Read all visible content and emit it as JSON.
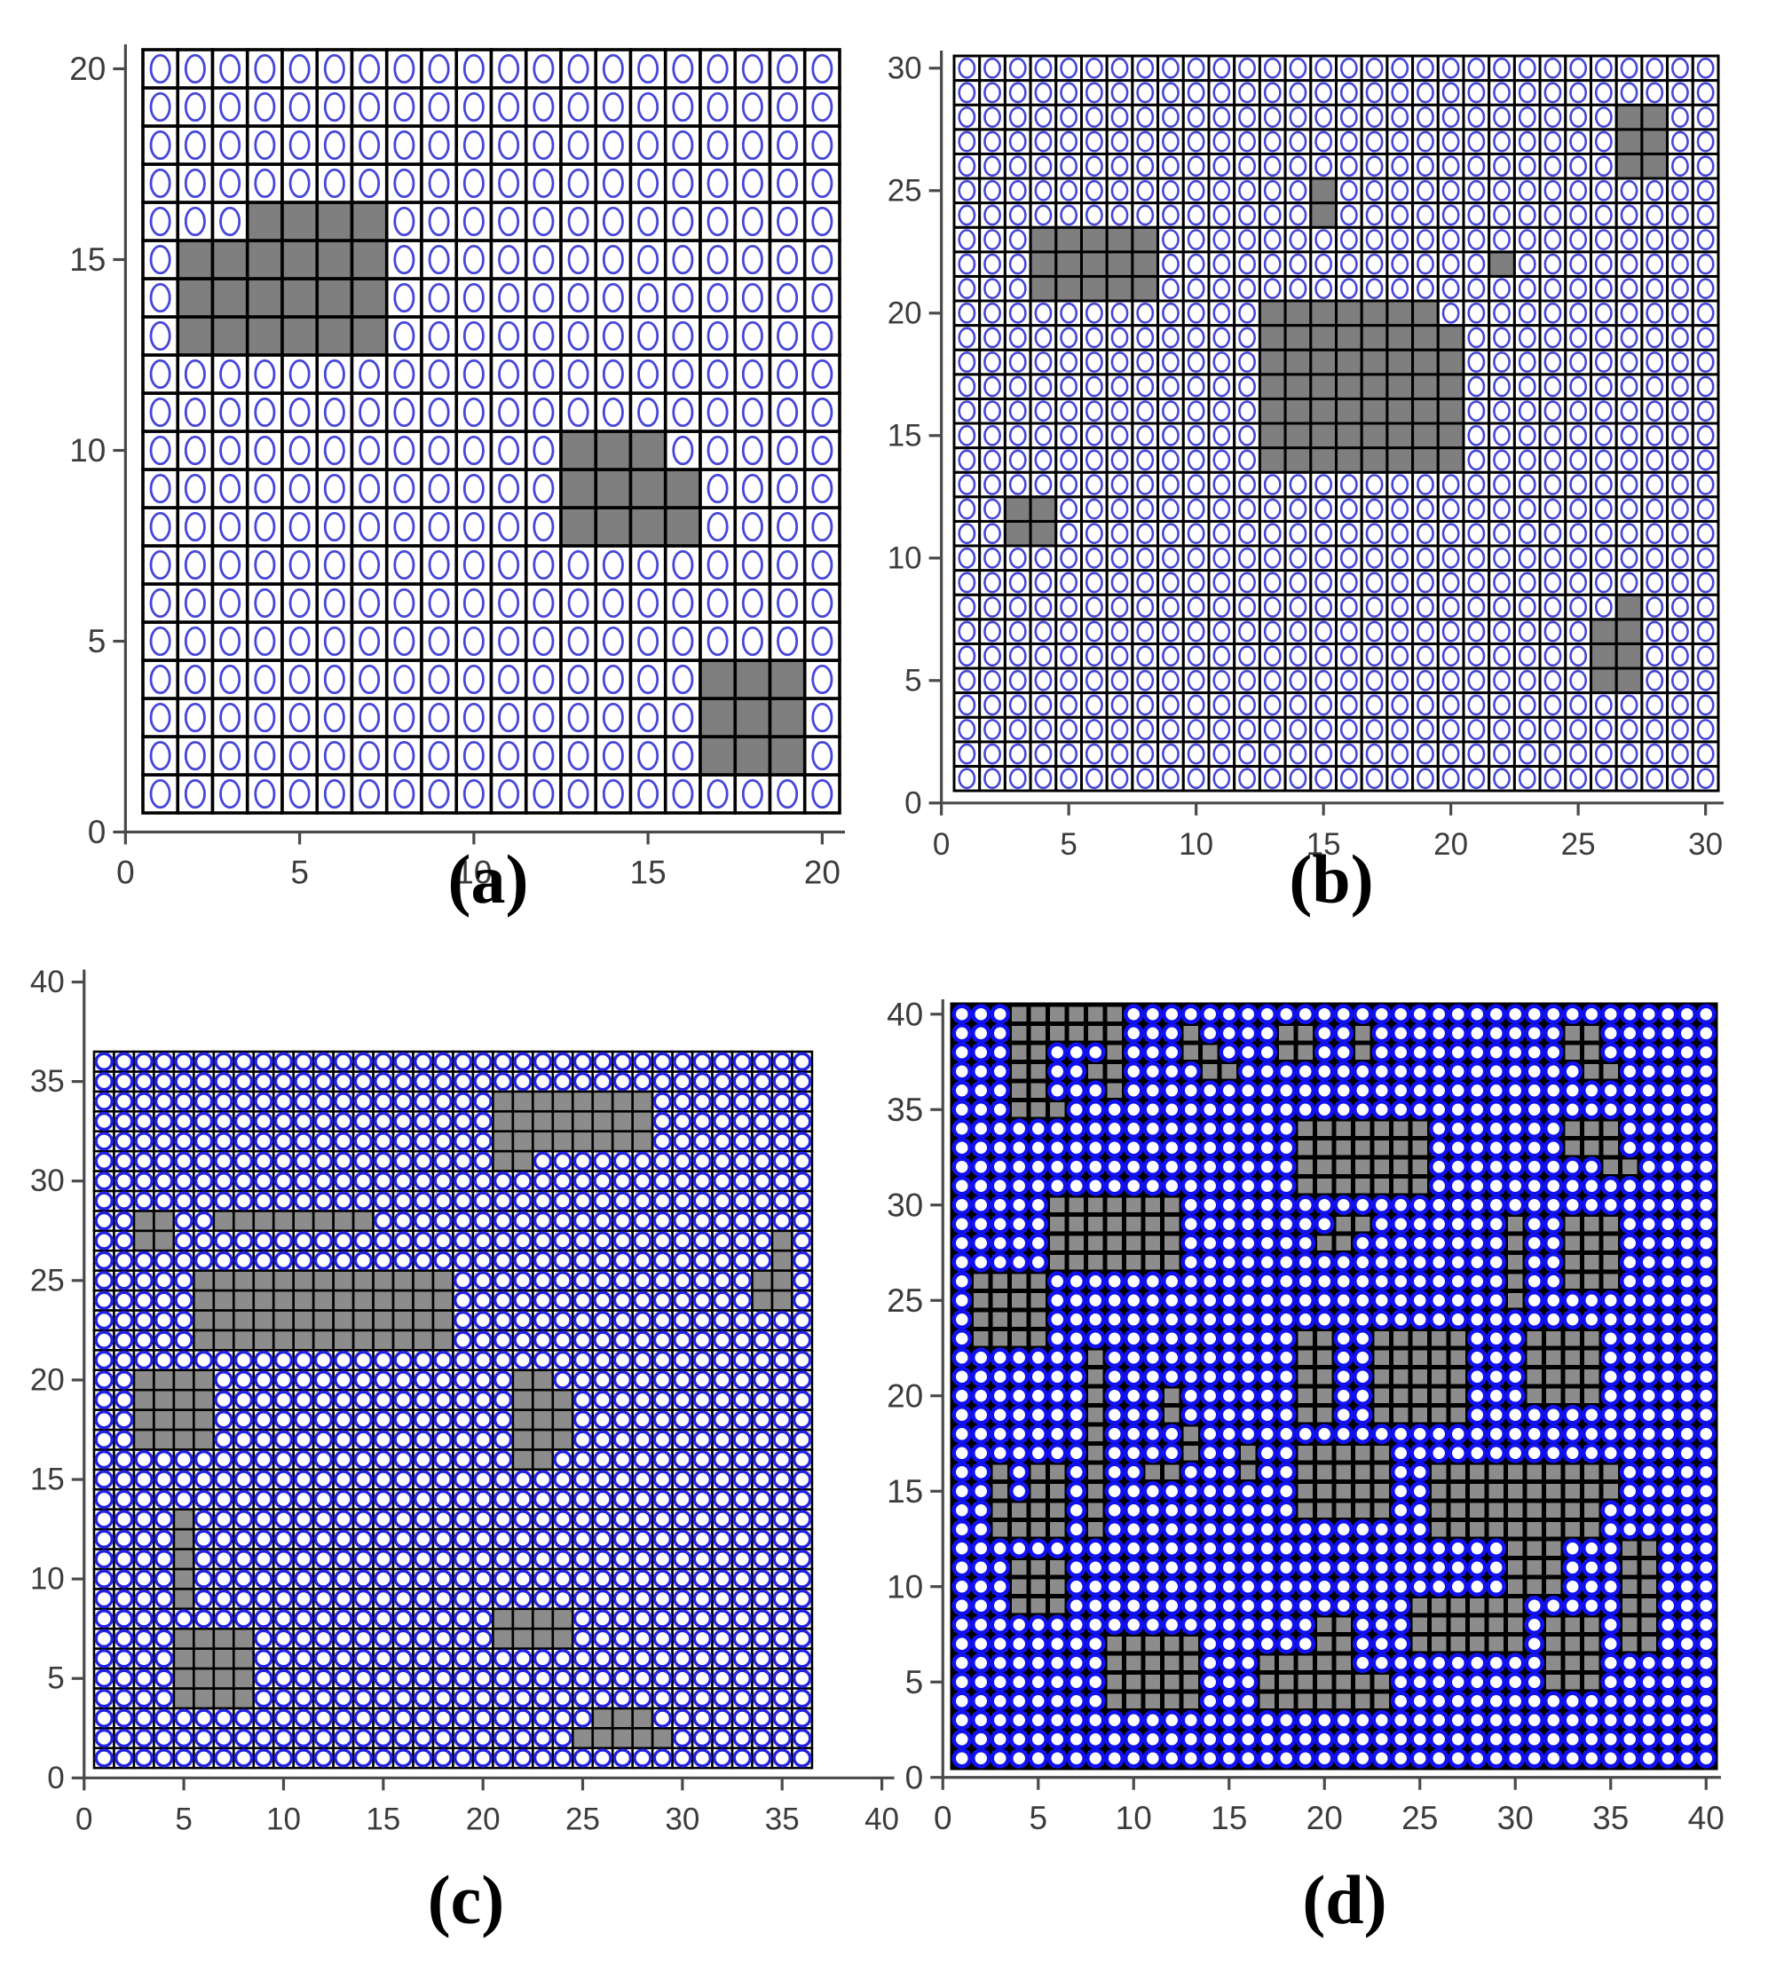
{
  "figure": {
    "description": "Four occupancy grid maps with free cells marked by blue circles and obstacle cells filled gray",
    "background": "#ffffff"
  },
  "colors": {
    "grid_line": "#000000",
    "cell_free_fill": "#ffffff",
    "axis_line": "#4a4a4a",
    "tick_label": "#3c3c3c",
    "caption_text": "#000000",
    "obstacle_fill_ab": "#7f7f7f",
    "obstacle_fill_cd": "#8c8c8c",
    "circle_blue_ab": "#4646d8",
    "circle_blue_c": "#2222e0",
    "circle_blue_d": "#1111ee"
  },
  "captions": {
    "a": "(a)",
    "b": "(b)",
    "c": "(c)",
    "d": "(d)"
  },
  "chart_data": {
    "type": "heatmap",
    "subtype": "occupancy-grid-maps",
    "free_cell_marker": "blue-circle",
    "obstacle_cell_marker": "gray-filled-square",
    "panels": [
      {
        "id": "a",
        "caption": "(a)",
        "grid_cols": 20,
        "grid_rows": 20,
        "x_ticks": [
          0,
          5,
          10,
          15,
          20
        ],
        "y_ticks": [
          0,
          5,
          10,
          15,
          20
        ],
        "x_range": [
          0,
          20
        ],
        "y_range": [
          0,
          20
        ],
        "obstacle_color": "#7f7f7f",
        "circle_color": "#4646d8",
        "obstacle_rects": [
          {
            "x1": 4,
            "y1": 16,
            "x2": 7,
            "y2": 16
          },
          {
            "x1": 2,
            "y1": 13,
            "x2": 7,
            "y2": 15
          },
          {
            "x1": 13,
            "y1": 10,
            "x2": 15,
            "y2": 10
          },
          {
            "x1": 13,
            "y1": 8,
            "x2": 16,
            "y2": 9
          },
          {
            "x1": 17,
            "y1": 2,
            "x2": 19,
            "y2": 4
          }
        ]
      },
      {
        "id": "b",
        "caption": "(b)",
        "grid_cols": 30,
        "grid_rows": 30,
        "x_ticks": [
          0,
          5,
          10,
          15,
          20,
          25,
          30
        ],
        "y_ticks": [
          0,
          5,
          10,
          15,
          20,
          25,
          30
        ],
        "x_range": [
          0,
          30
        ],
        "y_range": [
          0,
          30
        ],
        "obstacle_color": "#7f7f7f",
        "circle_color": "#4646d8",
        "obstacle_rects": [
          {
            "x1": 27,
            "y1": 26,
            "x2": 28,
            "y2": 28
          },
          {
            "x1": 4,
            "y1": 21,
            "x2": 8,
            "y2": 23
          },
          {
            "x1": 15,
            "y1": 24,
            "x2": 15,
            "y2": 25
          },
          {
            "x1": 22,
            "y1": 22,
            "x2": 22,
            "y2": 22
          },
          {
            "x1": 13,
            "y1": 20,
            "x2": 19,
            "y2": 20
          },
          {
            "x1": 13,
            "y1": 14,
            "x2": 20,
            "y2": 19
          },
          {
            "x1": 3,
            "y1": 11,
            "x2": 4,
            "y2": 12
          },
          {
            "x1": 27,
            "y1": 8,
            "x2": 27,
            "y2": 8
          },
          {
            "x1": 26,
            "y1": 5,
            "x2": 27,
            "y2": 7
          }
        ]
      },
      {
        "id": "c",
        "caption": "(c)",
        "grid_cols": 36,
        "grid_rows": 36,
        "x_ticks": [
          0,
          5,
          10,
          15,
          20,
          25,
          30,
          35,
          40
        ],
        "y_ticks": [
          0,
          5,
          10,
          15,
          20,
          25,
          30,
          35,
          40
        ],
        "x_range": [
          0,
          40
        ],
        "y_range": [
          0,
          40
        ],
        "obstacle_color": "#8c8c8c",
        "circle_color": "#2222e0",
        "obstacle_rects": [
          {
            "x1": 3,
            "y1": 27,
            "x2": 4,
            "y2": 28
          },
          {
            "x1": 7,
            "y1": 28,
            "x2": 14,
            "y2": 28
          },
          {
            "x1": 21,
            "y1": 32,
            "x2": 28,
            "y2": 34
          },
          {
            "x1": 21,
            "y1": 31,
            "x2": 22,
            "y2": 31
          },
          {
            "x1": 6,
            "y1": 22,
            "x2": 18,
            "y2": 25
          },
          {
            "x1": 35,
            "y1": 26,
            "x2": 35,
            "y2": 27
          },
          {
            "x1": 34,
            "y1": 24,
            "x2": 35,
            "y2": 25
          },
          {
            "x1": 3,
            "y1": 17,
            "x2": 6,
            "y2": 20
          },
          {
            "x1": 22,
            "y1": 16,
            "x2": 23,
            "y2": 20
          },
          {
            "x1": 24,
            "y1": 17,
            "x2": 24,
            "y2": 19
          },
          {
            "x1": 5,
            "y1": 9,
            "x2": 5,
            "y2": 13
          },
          {
            "x1": 21,
            "y1": 7,
            "x2": 24,
            "y2": 8
          },
          {
            "x1": 5,
            "y1": 4,
            "x2": 8,
            "y2": 7
          },
          {
            "x1": 26,
            "y1": 3,
            "x2": 28,
            "y2": 3
          },
          {
            "x1": 25,
            "y1": 2,
            "x2": 29,
            "y2": 2
          }
        ]
      },
      {
        "id": "d",
        "caption": "(d)",
        "grid_cols": 40,
        "grid_rows": 40,
        "x_ticks": [
          0,
          5,
          10,
          15,
          20,
          25,
          30,
          35,
          40
        ],
        "y_ticks": [
          0,
          5,
          10,
          15,
          20,
          25,
          30,
          35,
          40
        ],
        "x_range": [
          0,
          40
        ],
        "y_range": [
          0,
          40
        ],
        "obstacle_color": "#8c8c8c",
        "circle_color": "#1111ee",
        "obstacle_rects": [
          {
            "x1": 4,
            "y1": 39,
            "x2": 9,
            "y2": 40
          },
          {
            "x1": 4,
            "y1": 35,
            "x2": 5,
            "y2": 38
          },
          {
            "x1": 6,
            "y1": 35,
            "x2": 6,
            "y2": 35
          },
          {
            "x1": 9,
            "y1": 36,
            "x2": 9,
            "y2": 38
          },
          {
            "x1": 8,
            "y1": 37,
            "x2": 8,
            "y2": 37
          },
          {
            "x1": 13,
            "y1": 38,
            "x2": 13,
            "y2": 39
          },
          {
            "x1": 14,
            "y1": 37,
            "x2": 14,
            "y2": 38
          },
          {
            "x1": 15,
            "y1": 37,
            "x2": 15,
            "y2": 37
          },
          {
            "x1": 18,
            "y1": 38,
            "x2": 19,
            "y2": 39
          },
          {
            "x1": 22,
            "y1": 38,
            "x2": 22,
            "y2": 39
          },
          {
            "x1": 33,
            "y1": 38,
            "x2": 34,
            "y2": 39
          },
          {
            "x1": 34,
            "y1": 37,
            "x2": 35,
            "y2": 37
          },
          {
            "x1": 19,
            "y1": 31,
            "x2": 25,
            "y2": 34
          },
          {
            "x1": 33,
            "y1": 33,
            "x2": 35,
            "y2": 34
          },
          {
            "x1": 35,
            "y1": 32,
            "x2": 36,
            "y2": 32
          },
          {
            "x1": 6,
            "y1": 27,
            "x2": 12,
            "y2": 30
          },
          {
            "x1": 21,
            "y1": 29,
            "x2": 22,
            "y2": 29
          },
          {
            "x1": 20,
            "y1": 28,
            "x2": 21,
            "y2": 28
          },
          {
            "x1": 30,
            "y1": 25,
            "x2": 30,
            "y2": 29
          },
          {
            "x1": 33,
            "y1": 26,
            "x2": 35,
            "y2": 29
          },
          {
            "x1": 2,
            "y1": 23,
            "x2": 5,
            "y2": 26
          },
          {
            "x1": 8,
            "y1": 13,
            "x2": 8,
            "y2": 22
          },
          {
            "x1": 12,
            "y1": 19,
            "x2": 12,
            "y2": 20
          },
          {
            "x1": 13,
            "y1": 17,
            "x2": 13,
            "y2": 18
          },
          {
            "x1": 11,
            "y1": 16,
            "x2": 12,
            "y2": 16
          },
          {
            "x1": 3,
            "y1": 13,
            "x2": 3,
            "y2": 16
          },
          {
            "x1": 5,
            "y1": 13,
            "x2": 6,
            "y2": 16
          },
          {
            "x1": 4,
            "y1": 13,
            "x2": 4,
            "y2": 14
          },
          {
            "x1": 16,
            "y1": 16,
            "x2": 16,
            "y2": 17
          },
          {
            "x1": 4,
            "y1": 9,
            "x2": 6,
            "y2": 11
          },
          {
            "x1": 9,
            "y1": 4,
            "x2": 13,
            "y2": 7
          },
          {
            "x1": 19,
            "y1": 19,
            "x2": 20,
            "y2": 23
          },
          {
            "x1": 23,
            "y1": 19,
            "x2": 27,
            "y2": 23
          },
          {
            "x1": 31,
            "y1": 20,
            "x2": 34,
            "y2": 23
          },
          {
            "x1": 19,
            "y1": 14,
            "x2": 23,
            "y2": 17
          },
          {
            "x1": 26,
            "y1": 13,
            "x2": 34,
            "y2": 16
          },
          {
            "x1": 35,
            "y1": 15,
            "x2": 35,
            "y2": 16
          },
          {
            "x1": 30,
            "y1": 10,
            "x2": 32,
            "y2": 12
          },
          {
            "x1": 36,
            "y1": 7,
            "x2": 37,
            "y2": 12
          },
          {
            "x1": 32,
            "y1": 5,
            "x2": 34,
            "y2": 8
          },
          {
            "x1": 20,
            "y1": 5,
            "x2": 21,
            "y2": 8
          },
          {
            "x1": 25,
            "y1": 7,
            "x2": 30,
            "y2": 9
          },
          {
            "x1": 17,
            "y1": 4,
            "x2": 21,
            "y2": 6
          },
          {
            "x1": 22,
            "y1": 4,
            "x2": 23,
            "y2": 5
          }
        ]
      }
    ]
  }
}
